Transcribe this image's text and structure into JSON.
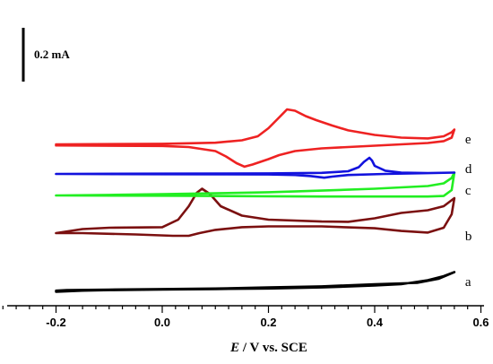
{
  "chart_data": {
    "type": "line",
    "title": "",
    "xlabel_italic": "E",
    "xlabel_rest": " / V vs. SCE",
    "ylabel": "",
    "xlim": [
      -0.3,
      0.6
    ],
    "x_ticks": [
      "-0.2",
      "0.0",
      "0.2",
      "0.4",
      "0.6"
    ],
    "x_tick_values": [
      -0.2,
      0.0,
      0.2,
      0.4,
      0.6
    ],
    "scale_bar": {
      "label": "0.2 mA",
      "value_mA": 0.2
    },
    "y_units": "mA (traces offset vertically)",
    "series": [
      {
        "name": "a",
        "color": "#000000",
        "offset_mA": 0.0,
        "forward": [
          [
            -0.2,
            0.002
          ],
          [
            -0.15,
            0.006
          ],
          [
            -0.1,
            0.008
          ],
          [
            0.0,
            0.01
          ],
          [
            0.1,
            0.012
          ],
          [
            0.2,
            0.014
          ],
          [
            0.3,
            0.018
          ],
          [
            0.4,
            0.025
          ],
          [
            0.45,
            0.03
          ],
          [
            0.5,
            0.045
          ],
          [
            0.53,
            0.06
          ],
          [
            0.55,
            0.075
          ]
        ],
        "reverse": [
          [
            0.55,
            0.075
          ],
          [
            0.52,
            0.05
          ],
          [
            0.48,
            0.035
          ],
          [
            0.4,
            0.03
          ],
          [
            0.3,
            0.022
          ],
          [
            0.2,
            0.018
          ],
          [
            0.1,
            0.014
          ],
          [
            0.0,
            0.012
          ],
          [
            -0.1,
            0.01
          ],
          [
            -0.18,
            0.008
          ],
          [
            -0.2,
            0.006
          ]
        ]
      },
      {
        "name": "b",
        "color": "#7b1010",
        "offset_mA": 0.19,
        "forward": [
          [
            -0.2,
            0.03
          ],
          [
            -0.15,
            0.045
          ],
          [
            -0.1,
            0.05
          ],
          [
            0.0,
            0.052
          ],
          [
            0.03,
            0.08
          ],
          [
            0.05,
            0.13
          ],
          [
            0.065,
            0.18
          ],
          [
            0.075,
            0.195
          ],
          [
            0.09,
            0.175
          ],
          [
            0.11,
            0.13
          ],
          [
            0.15,
            0.095
          ],
          [
            0.2,
            0.08
          ],
          [
            0.3,
            0.073
          ],
          [
            0.35,
            0.072
          ],
          [
            0.4,
            0.085
          ],
          [
            0.45,
            0.105
          ],
          [
            0.5,
            0.115
          ],
          [
            0.53,
            0.13
          ],
          [
            0.55,
            0.16
          ]
        ],
        "reverse": [
          [
            0.55,
            0.16
          ],
          [
            0.545,
            0.1
          ],
          [
            0.53,
            0.05
          ],
          [
            0.5,
            0.032
          ],
          [
            0.45,
            0.038
          ],
          [
            0.4,
            0.048
          ],
          [
            0.3,
            0.055
          ],
          [
            0.2,
            0.055
          ],
          [
            0.15,
            0.052
          ],
          [
            0.1,
            0.042
          ],
          [
            0.07,
            0.03
          ],
          [
            0.05,
            0.02
          ],
          [
            0.02,
            0.02
          ],
          [
            -0.05,
            0.025
          ],
          [
            -0.15,
            0.03
          ],
          [
            -0.2,
            0.03
          ]
        ]
      },
      {
        "name": "c",
        "color": "#22ee22",
        "offset_mA": 0.36,
        "forward": [
          [
            -0.2,
            0.0
          ],
          [
            -0.1,
            0.002
          ],
          [
            0.0,
            0.005
          ],
          [
            0.1,
            0.008
          ],
          [
            0.2,
            0.012
          ],
          [
            0.3,
            0.018
          ],
          [
            0.4,
            0.025
          ],
          [
            0.5,
            0.035
          ],
          [
            0.53,
            0.045
          ],
          [
            0.545,
            0.065
          ],
          [
            0.55,
            0.085
          ]
        ],
        "reverse": [
          [
            0.55,
            0.085
          ],
          [
            0.545,
            0.02
          ],
          [
            0.53,
            -0.002
          ],
          [
            0.5,
            -0.004
          ],
          [
            0.4,
            -0.004
          ],
          [
            0.3,
            -0.004
          ],
          [
            0.2,
            -0.003
          ],
          [
            0.1,
            -0.002
          ],
          [
            0.0,
            -0.001
          ],
          [
            -0.2,
            0.0
          ]
        ]
      },
      {
        "name": "d",
        "color": "#1212dd",
        "offset_mA": 0.44,
        "forward": [
          [
            -0.2,
            0.0
          ],
          [
            0.0,
            0.001
          ],
          [
            0.2,
            0.002
          ],
          [
            0.3,
            0.004
          ],
          [
            0.35,
            0.01
          ],
          [
            0.37,
            0.025
          ],
          [
            0.38,
            0.045
          ],
          [
            0.39,
            0.06
          ],
          [
            0.395,
            0.05
          ],
          [
            0.4,
            0.03
          ],
          [
            0.42,
            0.012
          ],
          [
            0.45,
            0.005
          ],
          [
            0.5,
            0.003
          ],
          [
            0.55,
            0.005
          ]
        ],
        "reverse": [
          [
            0.55,
            0.005
          ],
          [
            0.5,
            0.003
          ],
          [
            0.42,
            0.0
          ],
          [
            0.35,
            -0.004
          ],
          [
            0.32,
            -0.01
          ],
          [
            0.305,
            -0.014
          ],
          [
            0.28,
            -0.008
          ],
          [
            0.25,
            -0.004
          ],
          [
            0.2,
            -0.002
          ],
          [
            0.0,
            -0.001
          ],
          [
            -0.2,
            0.0
          ]
        ]
      },
      {
        "name": "e",
        "color": "#ee2222",
        "offset_mA": 0.55,
        "forward": [
          [
            -0.2,
            0.0
          ],
          [
            0.0,
            0.002
          ],
          [
            0.1,
            0.006
          ],
          [
            0.15,
            0.015
          ],
          [
            0.18,
            0.03
          ],
          [
            0.2,
            0.06
          ],
          [
            0.22,
            0.1
          ],
          [
            0.235,
            0.13
          ],
          [
            0.25,
            0.125
          ],
          [
            0.27,
            0.105
          ],
          [
            0.29,
            0.09
          ],
          [
            0.32,
            0.07
          ],
          [
            0.35,
            0.052
          ],
          [
            0.4,
            0.035
          ],
          [
            0.45,
            0.025
          ],
          [
            0.5,
            0.022
          ],
          [
            0.53,
            0.03
          ],
          [
            0.545,
            0.045
          ],
          [
            0.55,
            0.055
          ]
        ],
        "reverse": [
          [
            0.55,
            0.055
          ],
          [
            0.545,
            0.025
          ],
          [
            0.53,
            0.012
          ],
          [
            0.5,
            0.005
          ],
          [
            0.45,
            0.0
          ],
          [
            0.4,
            -0.005
          ],
          [
            0.35,
            -0.01
          ],
          [
            0.3,
            -0.015
          ],
          [
            0.25,
            -0.025
          ],
          [
            0.22,
            -0.04
          ],
          [
            0.2,
            -0.055
          ],
          [
            0.17,
            -0.075
          ],
          [
            0.155,
            -0.083
          ],
          [
            0.14,
            -0.07
          ],
          [
            0.12,
            -0.045
          ],
          [
            0.1,
            -0.025
          ],
          [
            0.05,
            -0.01
          ],
          [
            0.0,
            -0.006
          ],
          [
            -0.2,
            -0.004
          ]
        ]
      }
    ]
  }
}
